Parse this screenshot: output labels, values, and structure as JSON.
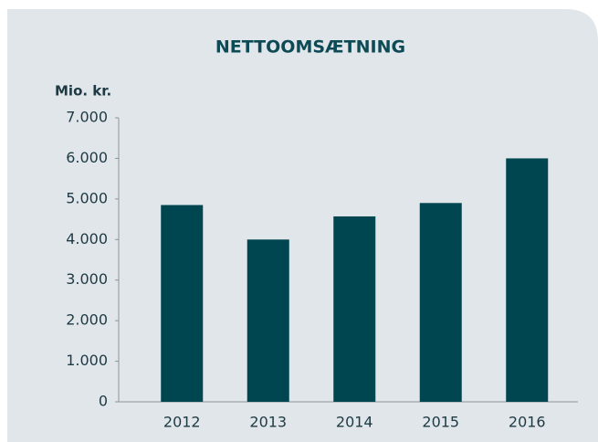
{
  "chart_data": {
    "type": "bar",
    "title": "NETTOOMSÆTNING",
    "y_label": "Mio. kr.",
    "categories": [
      "2012",
      "2013",
      "2014",
      "2015",
      "2016"
    ],
    "values": [
      4850,
      4000,
      4570,
      4900,
      6000
    ],
    "color": "#004651",
    "ylim": [
      0,
      7000
    ],
    "yticks": [
      0,
      {
        "value": 1000,
        "label": "1.000"
      },
      {
        "value": 2000,
        "label": "2.000"
      },
      {
        "value": 3000,
        "label": "3.000"
      },
      {
        "value": 4000,
        "label": "4.000"
      },
      {
        "value": 5000,
        "label": "5.000"
      },
      {
        "value": 6000,
        "label": "6.000"
      },
      {
        "value": 7000,
        "label": "7.000"
      }
    ],
    "grid": false
  }
}
